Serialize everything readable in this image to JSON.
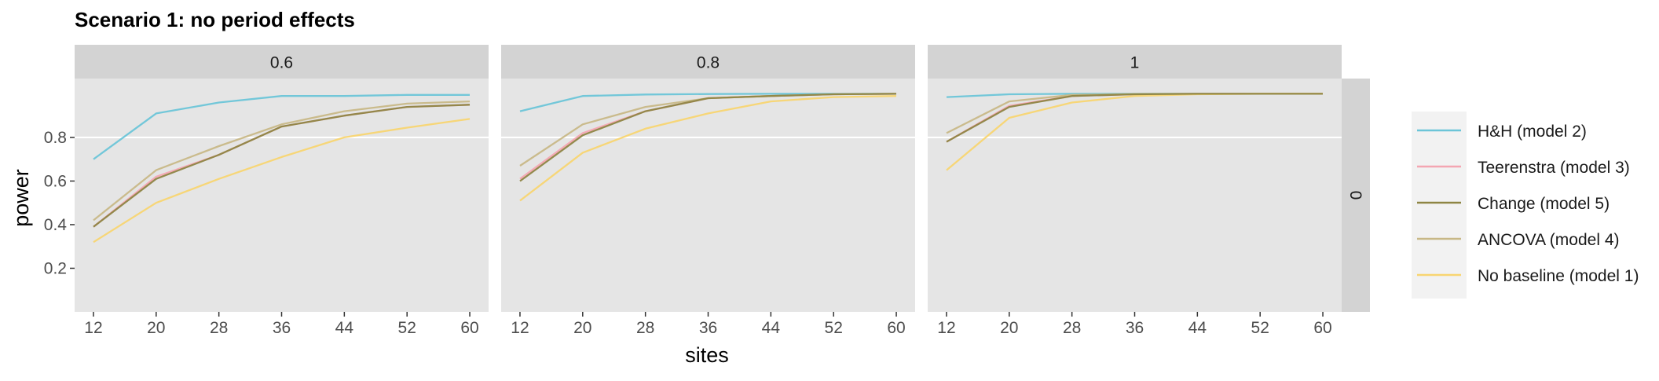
{
  "chart_data": {
    "type": "line",
    "title": "Scenario 1: no period effects",
    "xlabel": "sites",
    "ylabel": "power",
    "x": [
      12,
      20,
      28,
      36,
      44,
      52,
      60
    ],
    "x_ticks": [
      "12",
      "20",
      "28",
      "36",
      "44",
      "52",
      "60"
    ],
    "xlim": [
      9.6,
      62.4
    ],
    "ylim": [
      0.0,
      1.07
    ],
    "y_ticks": [
      0.2,
      0.4,
      0.6,
      0.8
    ],
    "y_tick_labels": [
      "0.2",
      "0.4",
      "0.6",
      "0.8"
    ],
    "grid": true,
    "facet_row_label": "0",
    "legend_position": "right",
    "legend": [
      {
        "name": "H&H (model 2)",
        "color": "#6CC5D8"
      },
      {
        "name": "Teerenstra (model 3)",
        "color": "#F4A6B2"
      },
      {
        "name": "Change (model 5)",
        "color": "#8E8544"
      },
      {
        "name": "ANCOVA (model 4)",
        "color": "#C8B887"
      },
      {
        "name": "No baseline (model 1)",
        "color": "#F8D571"
      }
    ],
    "panels": [
      {
        "label": "0.6",
        "series": [
          {
            "name": "H&H (model 2)",
            "values": [
              0.7,
              0.91,
              0.96,
              0.99,
              0.99,
              0.995,
              0.995
            ]
          },
          {
            "name": "Teerenstra (model 3)",
            "values": [
              0.39,
              0.62,
              0.72,
              0.85,
              0.9,
              0.94,
              0.95
            ]
          },
          {
            "name": "ANCOVA (model 4)",
            "values": [
              0.42,
              0.65,
              0.76,
              0.86,
              0.92,
              0.955,
              0.965
            ]
          },
          {
            "name": "No baseline (model 1)",
            "values": [
              0.32,
              0.5,
              0.61,
              0.71,
              0.8,
              0.845,
              0.885
            ]
          },
          {
            "name": "Change (model 5)",
            "values": [
              0.39,
              0.61,
              0.72,
              0.85,
              0.9,
              0.94,
              0.95
            ]
          }
        ]
      },
      {
        "label": "0.8",
        "series": [
          {
            "name": "H&H (model 2)",
            "values": [
              0.92,
              0.99,
              0.997,
              0.999,
              1.0,
              1.0,
              1.0
            ]
          },
          {
            "name": "Teerenstra (model 3)",
            "values": [
              0.61,
              0.82,
              0.92,
              0.98,
              0.99,
              0.998,
              1.0
            ]
          },
          {
            "name": "ANCOVA (model 4)",
            "values": [
              0.67,
              0.86,
              0.94,
              0.98,
              0.99,
              0.998,
              1.0
            ]
          },
          {
            "name": "No baseline (model 1)",
            "values": [
              0.51,
              0.73,
              0.84,
              0.91,
              0.965,
              0.985,
              0.99
            ]
          },
          {
            "name": "Change (model 5)",
            "values": [
              0.6,
              0.81,
              0.92,
              0.98,
              0.99,
              0.998,
              1.0
            ]
          }
        ]
      },
      {
        "label": "1",
        "series": [
          {
            "name": "H&H (model 2)",
            "values": [
              0.985,
              0.998,
              1.0,
              1.0,
              1.0,
              1.0,
              1.0
            ]
          },
          {
            "name": "Teerenstra (model 3)",
            "values": [
              0.78,
              0.945,
              0.99,
              0.998,
              1.0,
              1.0,
              1.0
            ]
          },
          {
            "name": "ANCOVA (model 4)",
            "values": [
              0.82,
              0.965,
              0.995,
              0.999,
              1.0,
              1.0,
              1.0
            ]
          },
          {
            "name": "No baseline (model 1)",
            "values": [
              0.65,
              0.89,
              0.96,
              0.99,
              0.998,
              1.0,
              1.0
            ]
          },
          {
            "name": "Change (model 5)",
            "values": [
              0.78,
              0.94,
              0.99,
              0.998,
              1.0,
              1.0,
              1.0
            ]
          }
        ]
      }
    ]
  },
  "colors": {
    "panel_background": "#E5E5E5",
    "strip_background": "#D3D3D3",
    "gridline": "#FFFFFF",
    "text": "#1A1A1A",
    "tick_text": "#4D4D4D",
    "legend_key_background": "#F2F2F2"
  }
}
